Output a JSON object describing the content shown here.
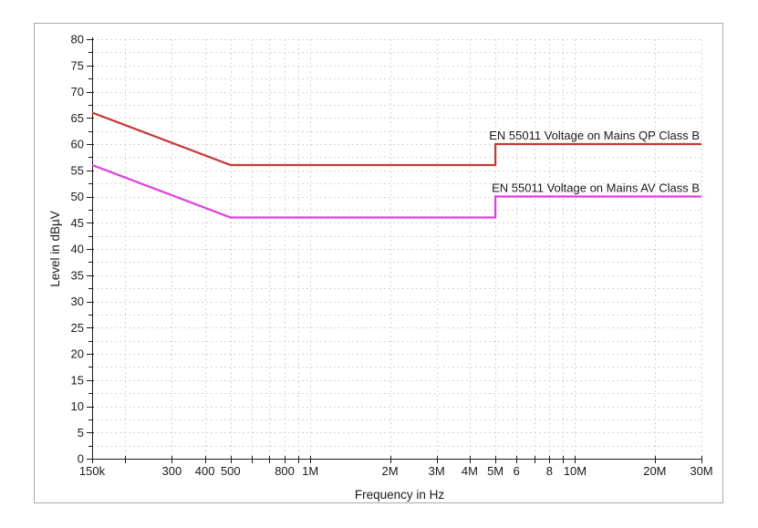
{
  "window": {
    "background": "#ffffff",
    "frame_border_color": "#aaaaaa",
    "plot_background": "#ffffff"
  },
  "colors": {
    "grid": "#d5d5d5",
    "axis": "#1c1c1c",
    "tick_text": "#1a1a1a"
  },
  "chart_data": {
    "type": "line",
    "title": "",
    "xlabel": "Frequency in Hz",
    "ylabel": "Level in dBµV",
    "xscale": "log",
    "xlim": [
      150000,
      30000000
    ],
    "ylim": [
      0,
      80
    ],
    "grid": true,
    "y_ticks": [
      0,
      5,
      10,
      15,
      20,
      25,
      30,
      35,
      40,
      45,
      50,
      55,
      60,
      65,
      70,
      75,
      80
    ],
    "y_minor_step": 2.5,
    "x_ticks": [
      {
        "value": 150000,
        "label": "150k"
      },
      {
        "value": 200000,
        "label": ""
      },
      {
        "value": 300000,
        "label": "300"
      },
      {
        "value": 400000,
        "label": "400"
      },
      {
        "value": 500000,
        "label": "500"
      },
      {
        "value": 600000,
        "label": ""
      },
      {
        "value": 700000,
        "label": ""
      },
      {
        "value": 800000,
        "label": "800"
      },
      {
        "value": 900000,
        "label": ""
      },
      {
        "value": 1000000,
        "label": "1M"
      },
      {
        "value": 2000000,
        "label": "2M"
      },
      {
        "value": 3000000,
        "label": "3M"
      },
      {
        "value": 4000000,
        "label": "4M"
      },
      {
        "value": 5000000,
        "label": "5M"
      },
      {
        "value": 6000000,
        "label": "6"
      },
      {
        "value": 7000000,
        "label": ""
      },
      {
        "value": 8000000,
        "label": "8"
      },
      {
        "value": 9000000,
        "label": ""
      },
      {
        "value": 10000000,
        "label": "10M"
      },
      {
        "value": 20000000,
        "label": "20M"
      },
      {
        "value": 30000000,
        "label": "30M"
      }
    ],
    "series": [
      {
        "name": "EN 55011 Voltage on Mains QP Class B",
        "color": "#c43a34",
        "label_color": "#d05550",
        "points": [
          [
            150000,
            66
          ],
          [
            500000,
            56
          ],
          [
            5000000,
            56
          ],
          [
            5000000,
            60
          ],
          [
            30000000,
            60
          ]
        ]
      },
      {
        "name": "EN 55011 Voltage on Mains AV Class B",
        "color": "#e03ee0",
        "label_color": "#e465e0",
        "points": [
          [
            150000,
            56
          ],
          [
            500000,
            46
          ],
          [
            5000000,
            46
          ],
          [
            5000000,
            50
          ],
          [
            30000000,
            50
          ]
        ]
      }
    ]
  }
}
